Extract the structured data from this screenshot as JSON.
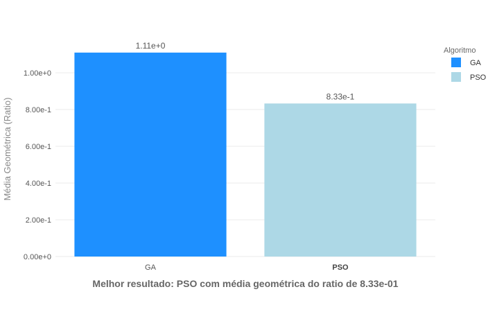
{
  "chart_data": {
    "type": "bar",
    "categories": [
      "GA",
      "PSO"
    ],
    "values": [
      1.11,
      0.833
    ],
    "value_labels": [
      "1.11e+0",
      "8.33e-1"
    ],
    "colors": [
      "#1e90ff",
      "#add8e6"
    ],
    "ylabel": "Média Geométrica (Ratio)",
    "xlabel": "Melhor resultado: PSO com média geométrica do ratio de 8.33e-01",
    "ylim": [
      0,
      1.25
    ],
    "y_ticks": [
      0,
      0.2,
      0.4,
      0.6,
      0.8,
      1.0
    ],
    "y_tick_labels": [
      "0.00e+0",
      "2.00e-1",
      "4.00e-1",
      "6.00e-1",
      "8.00e-1",
      "1.00e+0"
    ],
    "highlighted_category": "PSO",
    "grid": true,
    "legend": {
      "title": "Algoritmo",
      "placement": "right",
      "entries": [
        {
          "label": "GA",
          "color": "#1e90ff"
        },
        {
          "label": "PSO",
          "color": "#add8e6"
        }
      ]
    }
  }
}
